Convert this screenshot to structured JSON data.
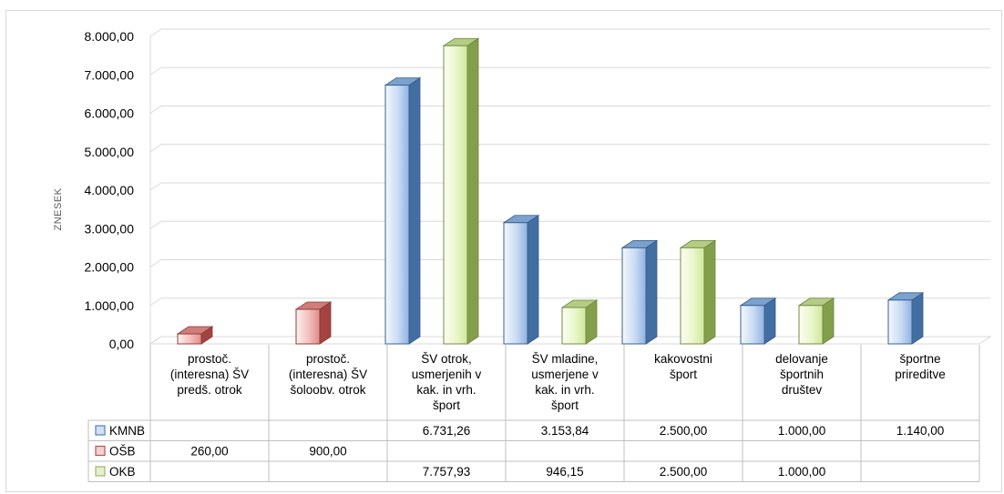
{
  "chart_data": {
    "type": "bar",
    "title": "",
    "xlabel": "",
    "ylabel": "ZNESEK",
    "ylim": [
      0,
      8000
    ],
    "yticks": [
      "0,00",
      "1.000,00",
      "2.000,00",
      "3.000,00",
      "4.000,00",
      "5.000,00",
      "6.000,00",
      "7.000,00",
      "8.000,00"
    ],
    "grid": true,
    "style": "3d-columns with data table",
    "categories": [
      [
        "prostoč.",
        "(interesna) ŠV",
        "predš. otrok"
      ],
      [
        "prostoč.",
        "(interesna) ŠV",
        "šoloobv. otrok"
      ],
      [
        "ŠV otrok,",
        "usmerjenih v",
        "kak. in vrh.",
        "šport"
      ],
      [
        "ŠV mladine,",
        "usmerjene v",
        "kak. in vrh.",
        "šport"
      ],
      [
        "kakovostni",
        "šport"
      ],
      [
        "delovanje",
        "športnih",
        "društev"
      ],
      [
        "športne",
        "prireditve"
      ]
    ],
    "series": [
      {
        "name": "KMNB",
        "color": "#4f81bd",
        "values": [
          null,
          null,
          6731.26,
          3153.84,
          2500.0,
          1000.0,
          1140.0
        ],
        "labels": [
          "",
          "",
          "6.731,26",
          "3.153,84",
          "2.500,00",
          "1.000,00",
          "1.140,00"
        ]
      },
      {
        "name": "OŠB",
        "color": "#c0504d",
        "values": [
          260.0,
          900.0,
          null,
          null,
          null,
          null,
          null
        ],
        "labels": [
          "260,00",
          "900,00",
          "",
          "",
          "",
          "",
          ""
        ]
      },
      {
        "name": "OKB",
        "color": "#9bbb59",
        "values": [
          null,
          null,
          7757.93,
          946.15,
          2500.0,
          1000.0,
          null
        ],
        "labels": [
          "",
          "",
          "7.757,93",
          "946,15",
          "2.500,00",
          "1.000,00",
          ""
        ]
      }
    ]
  }
}
